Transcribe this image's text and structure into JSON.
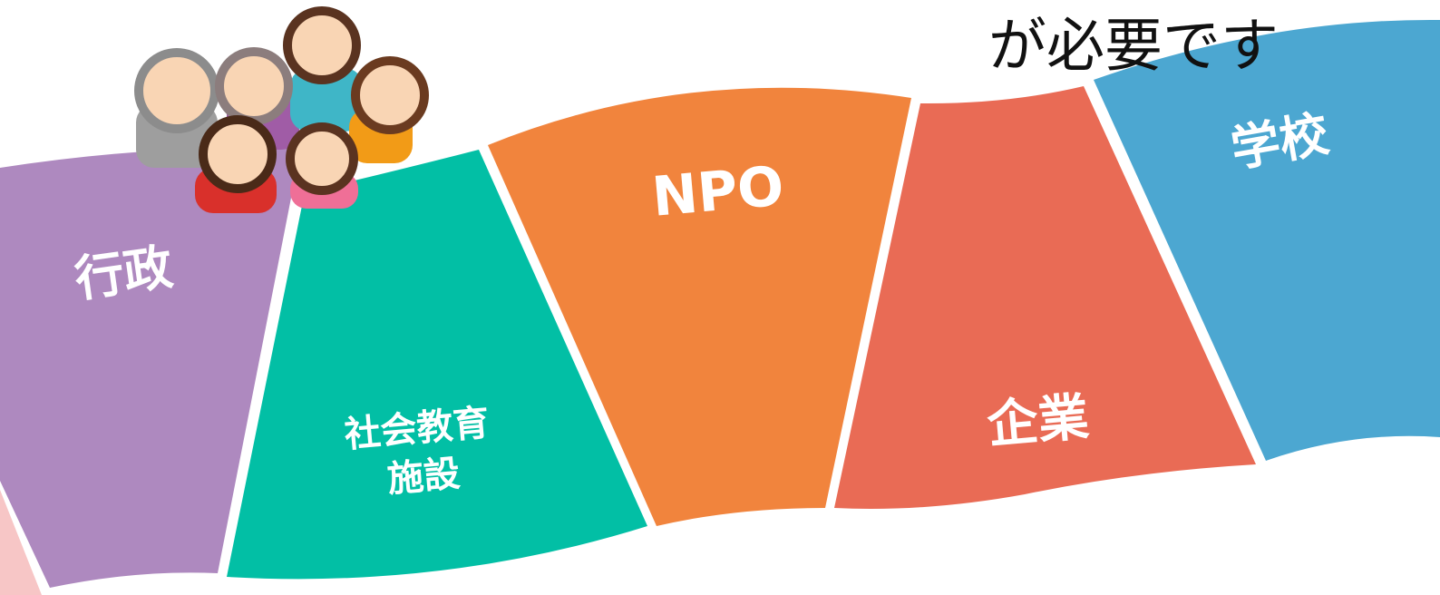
{
  "heading": "が必要です",
  "segments": [
    {
      "lines": [
        "行政"
      ]
    },
    {
      "lines": [
        "社会教育",
        "施設"
      ]
    },
    {
      "lines": [
        "NPO"
      ]
    },
    {
      "lines": [
        "企業"
      ]
    },
    {
      "lines": [
        "学校"
      ]
    }
  ]
}
